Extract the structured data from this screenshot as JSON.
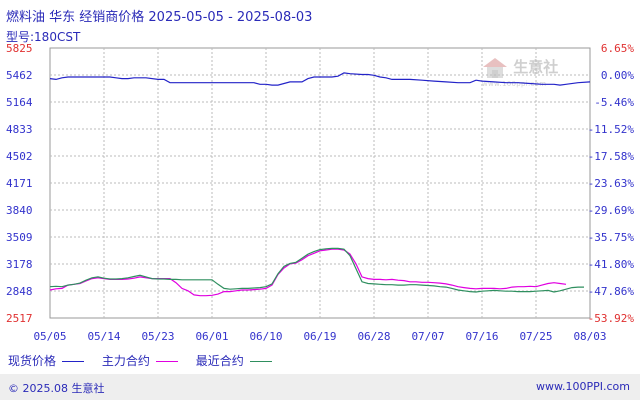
{
  "header": {
    "title": "燃料油 华东 经销商价格 2025-05-05 - 2025-08-03",
    "subtitle": "型号:180CST"
  },
  "watermark": {
    "text": "生意社",
    "sub": "www.100ppi.com",
    "icon": "house-logo-icon"
  },
  "legend": [
    {
      "label": "现货价格",
      "color": "#2323c8"
    },
    {
      "label": "主力合约",
      "color": "#e000e0"
    },
    {
      "label": "最近合约",
      "color": "#2f8f5f"
    }
  ],
  "footer": {
    "left": "© 2025.08 生意社",
    "right": "www.100PPI.com"
  },
  "chart_data": {
    "type": "line",
    "title": "燃料油 华东 经销商价格 2025-05-05 - 2025-08-03",
    "subtitle": "型号:180CST",
    "x_ticks": [
      "05/05",
      "05/14",
      "05/23",
      "06/01",
      "06/10",
      "06/19",
      "06/28",
      "07/07",
      "07/16",
      "07/25",
      "08/03"
    ],
    "y_left_ticks": [
      5825,
      5462,
      5164,
      4833,
      4502,
      4171,
      3840,
      3509,
      3178,
      2848,
      2517
    ],
    "y_right_ticks": [
      "6.65%",
      "0.00%",
      "-5.46%",
      "-11.52%",
      "-17.58%",
      "-23.63%",
      "-29.69%",
      "-35.75%",
      "-41.80%",
      "-47.86%",
      "-53.92%"
    ],
    "ylim": [
      2517,
      5825
    ],
    "xlim_days": [
      0,
      90
    ],
    "grid": true,
    "legend_position": "bottom",
    "series": [
      {
        "name": "现货价格",
        "color": "#2323c8",
        "x": [
          0,
          1,
          2,
          3,
          5,
          7,
          9,
          10,
          11,
          12,
          13,
          14,
          16,
          18,
          19,
          20,
          21,
          22,
          24,
          26,
          28,
          30,
          31,
          32,
          34,
          35,
          36,
          37,
          38,
          40,
          42,
          43,
          44,
          45,
          46,
          47,
          48,
          49,
          50,
          52,
          53,
          54,
          55,
          56,
          57,
          58,
          60,
          62,
          64,
          66,
          68,
          70,
          71,
          72,
          74,
          76,
          78,
          80,
          82,
          84,
          85,
          86,
          88,
          90
        ],
        "y": [
          5450,
          5440,
          5460,
          5470,
          5470,
          5470,
          5470,
          5470,
          5460,
          5450,
          5450,
          5460,
          5460,
          5440,
          5440,
          5400,
          5400,
          5400,
          5400,
          5400,
          5400,
          5400,
          5400,
          5400,
          5400,
          5380,
          5380,
          5370,
          5370,
          5410,
          5410,
          5450,
          5470,
          5470,
          5470,
          5470,
          5480,
          5520,
          5510,
          5500,
          5500,
          5490,
          5470,
          5460,
          5440,
          5440,
          5440,
          5430,
          5420,
          5410,
          5400,
          5400,
          5430,
          5420,
          5410,
          5400,
          5400,
          5390,
          5380,
          5380,
          5370,
          5380,
          5400,
          5410
        ]
      },
      {
        "name": "主力合约",
        "color": "#e000e0",
        "x": [
          0,
          1,
          2,
          3,
          4,
          5,
          6,
          7,
          8,
          9,
          10,
          11,
          12,
          13,
          14,
          15,
          16,
          17,
          18,
          19,
          20,
          21,
          22,
          23,
          24,
          25,
          26,
          27,
          28,
          29,
          30,
          31,
          32,
          33,
          34,
          35,
          36,
          37,
          38,
          39,
          40,
          41,
          42,
          43,
          44,
          45,
          46,
          47,
          48,
          49,
          50,
          51,
          52,
          53,
          54,
          55,
          56,
          57,
          58,
          59,
          60,
          61,
          62,
          63,
          64,
          65,
          66,
          67,
          68,
          69,
          70,
          71,
          72,
          73,
          74,
          75,
          76,
          77,
          78,
          79,
          80,
          81,
          82,
          83,
          84,
          85,
          86
        ],
        "y": [
          2860,
          2875,
          2880,
          2920,
          2930,
          2940,
          2970,
          3000,
          3010,
          3000,
          2990,
          2990,
          2990,
          2995,
          3005,
          3020,
          3010,
          3000,
          3000,
          3000,
          3000,
          2950,
          2880,
          2850,
          2800,
          2790,
          2790,
          2795,
          2810,
          2840,
          2840,
          2850,
          2860,
          2860,
          2865,
          2870,
          2880,
          2920,
          3050,
          3130,
          3180,
          3190,
          3230,
          3280,
          3310,
          3340,
          3350,
          3360,
          3360,
          3350,
          3300,
          3180,
          3020,
          3000,
          2990,
          2990,
          2985,
          2990,
          2980,
          2975,
          2960,
          2960,
          2955,
          2955,
          2950,
          2945,
          2935,
          2920,
          2900,
          2890,
          2880,
          2875,
          2880,
          2880,
          2880,
          2875,
          2880,
          2895,
          2900,
          2900,
          2905,
          2900,
          2920,
          2940,
          2950,
          2940,
          2930
        ]
      },
      {
        "name": "最近合约",
        "color": "#2f8f5f",
        "x": [
          0,
          1,
          2,
          3,
          4,
          5,
          6,
          7,
          8,
          9,
          10,
          11,
          12,
          13,
          14,
          15,
          16,
          17,
          18,
          19,
          20,
          21,
          22,
          23,
          24,
          25,
          26,
          27,
          28,
          29,
          30,
          31,
          32,
          33,
          34,
          35,
          36,
          37,
          38,
          39,
          40,
          41,
          42,
          43,
          44,
          45,
          46,
          47,
          48,
          49,
          50,
          51,
          52,
          53,
          54,
          55,
          56,
          57,
          58,
          59,
          60,
          61,
          62,
          63,
          64,
          65,
          66,
          67,
          68,
          69,
          70,
          71,
          72,
          73,
          74,
          75,
          76,
          77,
          78,
          79,
          80,
          81,
          82,
          83,
          84,
          85,
          86,
          87,
          88,
          89
        ],
        "y": [
          2900,
          2905,
          2900,
          2920,
          2930,
          2945,
          2980,
          3010,
          3020,
          3005,
          2995,
          2995,
          3000,
          3010,
          3025,
          3040,
          3020,
          3000,
          2995,
          2995,
          2990,
          2990,
          2985,
          2985,
          2985,
          2985,
          2985,
          2985,
          2930,
          2880,
          2870,
          2875,
          2880,
          2880,
          2885,
          2890,
          2900,
          2935,
          3060,
          3150,
          3185,
          3200,
          3250,
          3300,
          3330,
          3355,
          3365,
          3370,
          3370,
          3360,
          3280,
          3120,
          2960,
          2940,
          2935,
          2930,
          2925,
          2925,
          2920,
          2920,
          2925,
          2925,
          2920,
          2915,
          2910,
          2900,
          2895,
          2880,
          2860,
          2850,
          2840,
          2835,
          2845,
          2850,
          2855,
          2850,
          2845,
          2845,
          2840,
          2840,
          2840,
          2845,
          2850,
          2855,
          2835,
          2850,
          2870,
          2890,
          2895,
          2895
        ]
      }
    ]
  }
}
